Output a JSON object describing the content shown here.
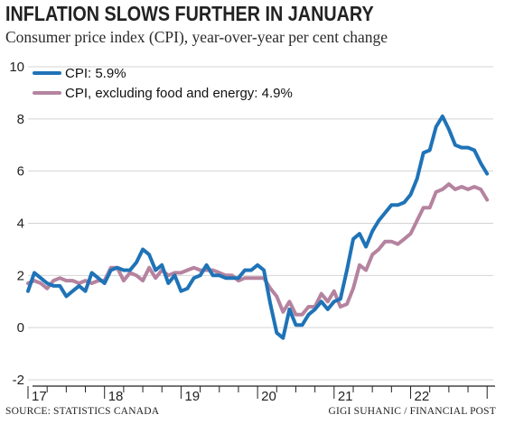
{
  "title": "INFLATION SLOWS FURTHER IN JANUARY",
  "subtitle": "Consumer price index (CPI), year-over-year per cent change",
  "source": "SOURCE: STATISTICS CANADA",
  "credit": "GIGI SUHANIC / FINANCIAL POST",
  "colors": {
    "cpi": "#1f73b7",
    "core": "#b5839f",
    "grid": "#d4d4d4",
    "axis": "#222222"
  },
  "chart_data": {
    "type": "line",
    "ylim": [
      -2,
      10
    ],
    "yticks": [
      -2,
      0,
      2,
      4,
      6,
      8,
      10
    ],
    "xlim": [
      2017.0,
      2023.08
    ],
    "xtick_labels": [
      "17",
      "18",
      "19",
      "20",
      "21",
      "22"
    ],
    "xticks": [
      2017,
      2018,
      2019,
      2020,
      2021,
      2022
    ],
    "legend_position": "top-left",
    "grid": "horizontal",
    "series": [
      {
        "name": "CPI: 5.9%",
        "key": "cpi",
        "points": [
          [
            2017.0,
            1.4
          ],
          [
            2017.083,
            2.1
          ],
          [
            2017.167,
            1.9
          ],
          [
            2017.25,
            1.7
          ],
          [
            2017.333,
            1.6
          ],
          [
            2017.417,
            1.6
          ],
          [
            2017.5,
            1.2
          ],
          [
            2017.583,
            1.4
          ],
          [
            2017.667,
            1.6
          ],
          [
            2017.75,
            1.4
          ],
          [
            2017.833,
            2.1
          ],
          [
            2017.917,
            1.9
          ],
          [
            2018.0,
            1.7
          ],
          [
            2018.083,
            2.2
          ],
          [
            2018.167,
            2.3
          ],
          [
            2018.25,
            2.2
          ],
          [
            2018.333,
            2.2
          ],
          [
            2018.417,
            2.5
          ],
          [
            2018.5,
            3.0
          ],
          [
            2018.583,
            2.8
          ],
          [
            2018.667,
            2.2
          ],
          [
            2018.75,
            2.4
          ],
          [
            2018.833,
            1.7
          ],
          [
            2018.917,
            2.0
          ],
          [
            2019.0,
            1.4
          ],
          [
            2019.083,
            1.5
          ],
          [
            2019.167,
            1.9
          ],
          [
            2019.25,
            2.0
          ],
          [
            2019.333,
            2.4
          ],
          [
            2019.417,
            2.0
          ],
          [
            2019.5,
            2.0
          ],
          [
            2019.583,
            1.9
          ],
          [
            2019.667,
            1.9
          ],
          [
            2019.75,
            1.9
          ],
          [
            2019.833,
            2.2
          ],
          [
            2019.917,
            2.2
          ],
          [
            2020.0,
            2.4
          ],
          [
            2020.083,
            2.2
          ],
          [
            2020.167,
            0.9
          ],
          [
            2020.25,
            -0.2
          ],
          [
            2020.333,
            -0.4
          ],
          [
            2020.417,
            0.7
          ],
          [
            2020.5,
            0.1
          ],
          [
            2020.583,
            0.1
          ],
          [
            2020.667,
            0.5
          ],
          [
            2020.75,
            0.7
          ],
          [
            2020.833,
            1.0
          ],
          [
            2020.917,
            0.7
          ],
          [
            2021.0,
            1.0
          ],
          [
            2021.083,
            1.1
          ],
          [
            2021.167,
            2.2
          ],
          [
            2021.25,
            3.4
          ],
          [
            2021.333,
            3.6
          ],
          [
            2021.417,
            3.1
          ],
          [
            2021.5,
            3.7
          ],
          [
            2021.583,
            4.1
          ],
          [
            2021.667,
            4.4
          ],
          [
            2021.75,
            4.7
          ],
          [
            2021.833,
            4.7
          ],
          [
            2021.917,
            4.8
          ],
          [
            2022.0,
            5.1
          ],
          [
            2022.083,
            5.7
          ],
          [
            2022.167,
            6.7
          ],
          [
            2022.25,
            6.8
          ],
          [
            2022.333,
            7.7
          ],
          [
            2022.417,
            8.1
          ],
          [
            2022.5,
            7.6
          ],
          [
            2022.583,
            7.0
          ],
          [
            2022.667,
            6.9
          ],
          [
            2022.75,
            6.9
          ],
          [
            2022.833,
            6.8
          ],
          [
            2022.917,
            6.3
          ],
          [
            2023.0,
            5.9
          ]
        ]
      },
      {
        "name": "CPI, excluding food and energy: 4.9%",
        "key": "core",
        "points": [
          [
            2017.0,
            1.7
          ],
          [
            2017.083,
            1.8
          ],
          [
            2017.167,
            1.7
          ],
          [
            2017.25,
            1.5
          ],
          [
            2017.333,
            1.8
          ],
          [
            2017.417,
            1.9
          ],
          [
            2017.5,
            1.8
          ],
          [
            2017.583,
            1.8
          ],
          [
            2017.667,
            1.7
          ],
          [
            2017.75,
            1.8
          ],
          [
            2017.833,
            1.7
          ],
          [
            2017.917,
            1.8
          ],
          [
            2018.0,
            1.8
          ],
          [
            2018.083,
            2.3
          ],
          [
            2018.167,
            2.3
          ],
          [
            2018.25,
            1.8
          ],
          [
            2018.333,
            2.1
          ],
          [
            2018.417,
            2.0
          ],
          [
            2018.5,
            1.8
          ],
          [
            2018.583,
            2.3
          ],
          [
            2018.667,
            1.9
          ],
          [
            2018.75,
            2.2
          ],
          [
            2018.833,
            2.0
          ],
          [
            2018.917,
            2.1
          ],
          [
            2019.0,
            2.1
          ],
          [
            2019.083,
            2.2
          ],
          [
            2019.167,
            2.3
          ],
          [
            2019.25,
            2.2
          ],
          [
            2019.333,
            2.2
          ],
          [
            2019.417,
            2.2
          ],
          [
            2019.5,
            2.1
          ],
          [
            2019.583,
            2.0
          ],
          [
            2019.667,
            2.0
          ],
          [
            2019.75,
            1.8
          ],
          [
            2019.833,
            1.9
          ],
          [
            2019.917,
            1.9
          ],
          [
            2020.0,
            1.9
          ],
          [
            2020.083,
            1.9
          ],
          [
            2020.167,
            1.5
          ],
          [
            2020.25,
            1.2
          ],
          [
            2020.333,
            0.6
          ],
          [
            2020.417,
            1.0
          ],
          [
            2020.5,
            0.5
          ],
          [
            2020.583,
            0.5
          ],
          [
            2020.667,
            0.8
          ],
          [
            2020.75,
            0.8
          ],
          [
            2020.833,
            1.3
          ],
          [
            2020.917,
            1.0
          ],
          [
            2021.0,
            1.4
          ],
          [
            2021.083,
            0.8
          ],
          [
            2021.167,
            0.9
          ],
          [
            2021.25,
            1.5
          ],
          [
            2021.333,
            2.4
          ],
          [
            2021.417,
            2.2
          ],
          [
            2021.5,
            2.8
          ],
          [
            2021.583,
            3.0
          ],
          [
            2021.667,
            3.3
          ],
          [
            2021.75,
            3.3
          ],
          [
            2021.833,
            3.2
          ],
          [
            2021.917,
            3.4
          ],
          [
            2022.0,
            3.6
          ],
          [
            2022.083,
            4.1
          ],
          [
            2022.167,
            4.6
          ],
          [
            2022.25,
            4.6
          ],
          [
            2022.333,
            5.2
          ],
          [
            2022.417,
            5.3
          ],
          [
            2022.5,
            5.5
          ],
          [
            2022.583,
            5.3
          ],
          [
            2022.667,
            5.4
          ],
          [
            2022.75,
            5.3
          ],
          [
            2022.833,
            5.4
          ],
          [
            2022.917,
            5.3
          ],
          [
            2023.0,
            4.9
          ]
        ]
      }
    ]
  }
}
